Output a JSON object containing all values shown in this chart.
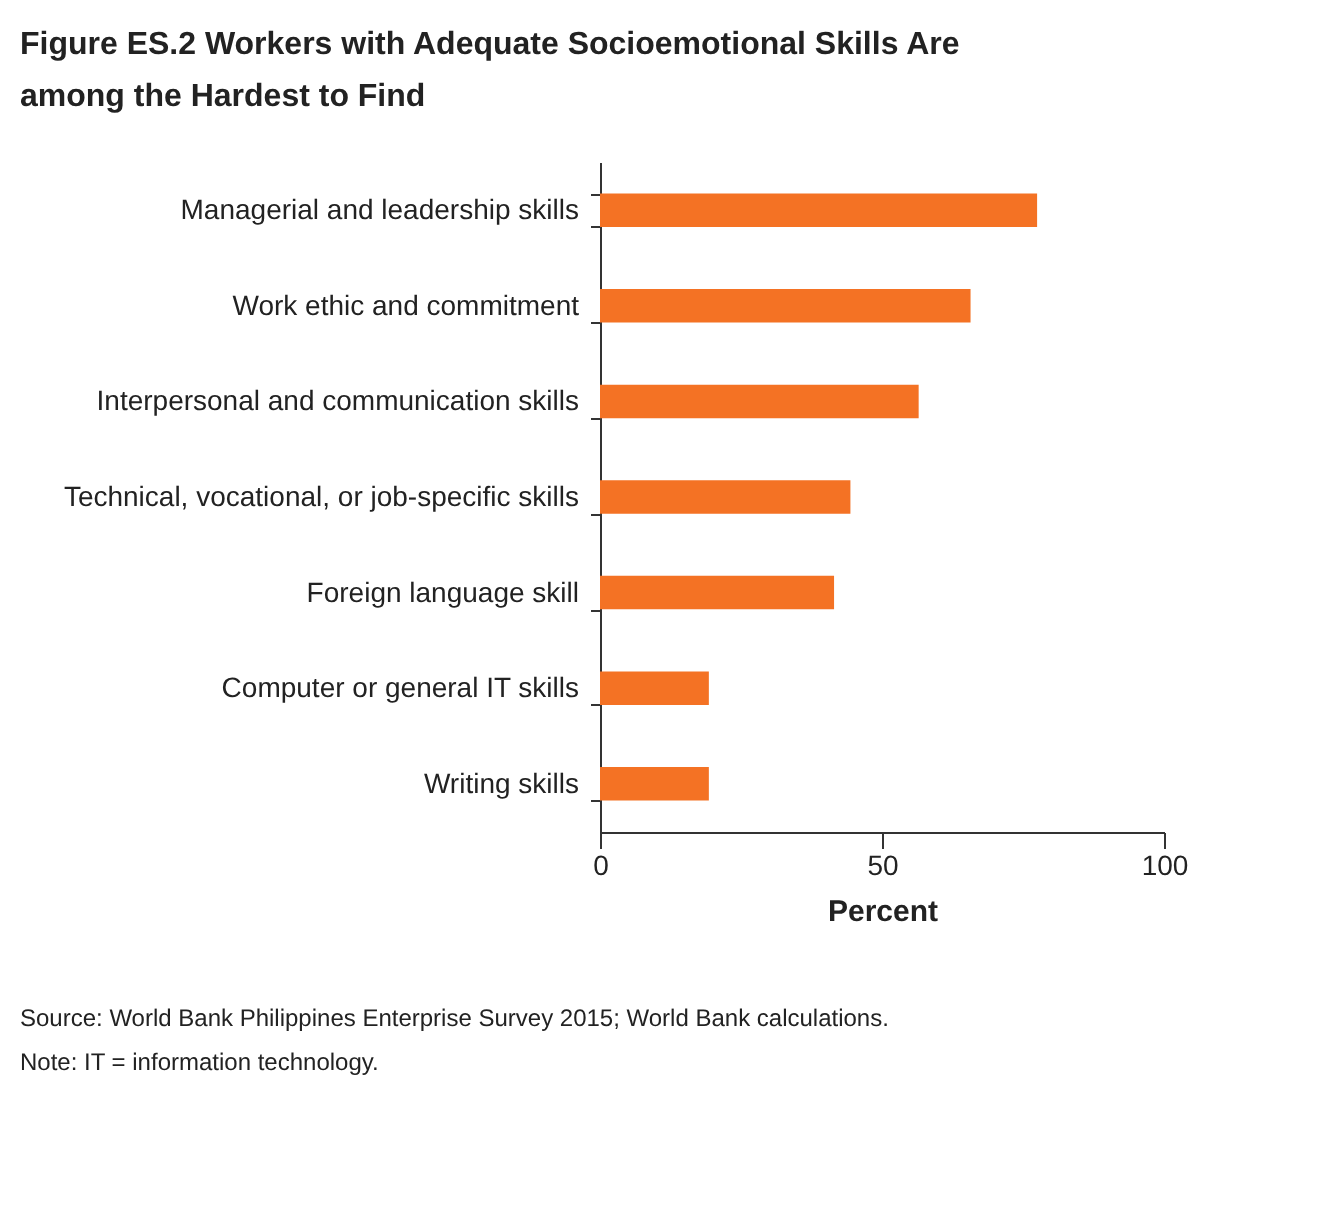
{
  "chart_data": {
    "type": "bar",
    "orientation": "horizontal",
    "title": "Figure ES.2  Workers with Adequate Socioemotional Skills Are among the Hardest to Find",
    "categories": [
      "Managerial and leadership skills",
      "Work ethic and commitment",
      "Interpersonal and communication skills",
      "Technical, vocational, or job-specific skills",
      "Foreign language skill",
      "Computer or general IT skills",
      "Writing skills"
    ],
    "values": [
      77.5,
      65.7,
      56.5,
      44.4,
      41.5,
      19.3,
      19.3
    ],
    "color": "#f47224",
    "xlim": [
      0,
      100
    ],
    "xticks": [
      0,
      50,
      100
    ],
    "xlabel": "Percent",
    "grid": false,
    "annotations": [
      "Source: World Bank Philippines Enterprise Survey 2015; World Bank calculations.",
      "Note: IT = information technology."
    ]
  }
}
